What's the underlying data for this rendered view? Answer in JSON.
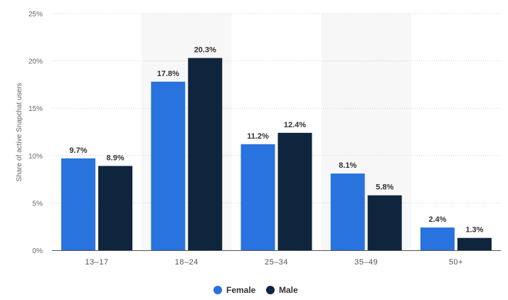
{
  "chart_data": {
    "type": "bar",
    "categories": [
      "13–17",
      "18–24",
      "25–34",
      "35–49",
      "50+"
    ],
    "series": [
      {
        "name": "Female",
        "values": [
          9.7,
          17.8,
          11.2,
          8.1,
          2.4
        ],
        "labels": [
          "9.7%",
          "17.8%",
          "11.2%",
          "8.1%",
          "2.4%"
        ],
        "color": "#2873de"
      },
      {
        "name": "Male",
        "values": [
          8.9,
          20.3,
          12.4,
          5.8,
          1.3
        ],
        "labels": [
          "8.9%",
          "20.3%",
          "12.4%",
          "5.8%",
          "1.3%"
        ],
        "color": "#0f243d"
      }
    ],
    "ylabel": "Share of active Snapchat users",
    "ylim": [
      0,
      25
    ],
    "yticks": [
      0,
      5,
      10,
      15,
      20,
      25
    ],
    "ytick_labels": [
      "0%",
      "5%",
      "10%",
      "15%",
      "20%",
      "25%"
    ],
    "grid": true,
    "legend_position": "bottom-center",
    "band_color": "#f7f7f7"
  }
}
